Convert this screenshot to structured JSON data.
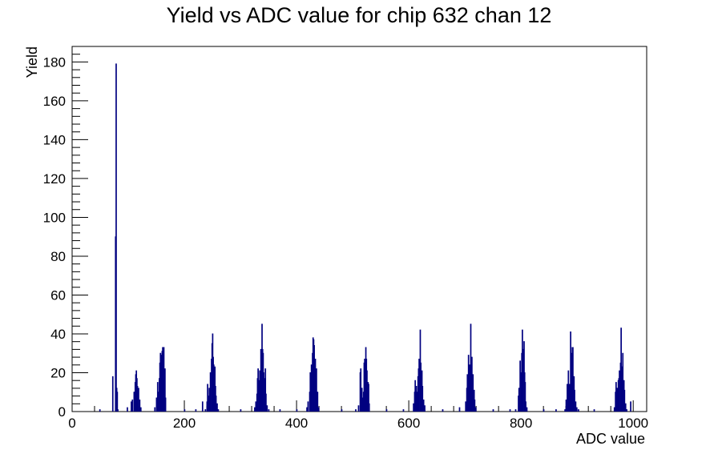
{
  "chart_data": {
    "type": "bar",
    "title": "Yield vs ADC value for chip 632 chan 12",
    "xlabel": "ADC value",
    "ylabel": "Yield",
    "xlim": [
      0,
      1024
    ],
    "ylim": [
      0,
      188
    ],
    "x_major_ticks": [
      0,
      200,
      400,
      600,
      800,
      1000
    ],
    "y_major_ticks": [
      0,
      20,
      40,
      60,
      80,
      100,
      120,
      140,
      160,
      180
    ],
    "line_color": "#000080",
    "series": [
      {
        "points": [
          [
            49,
            1
          ],
          [
            72,
            18
          ],
          [
            77,
            90
          ],
          [
            78,
            179
          ],
          [
            79,
            12
          ],
          [
            80,
            10
          ],
          [
            81,
            1
          ],
          [
            98,
            2
          ],
          [
            105,
            5
          ],
          [
            107,
            6
          ],
          [
            110,
            10
          ],
          [
            112,
            15
          ],
          [
            113,
            19
          ],
          [
            114,
            21
          ],
          [
            115,
            17
          ],
          [
            116,
            13
          ],
          [
            118,
            12
          ],
          [
            120,
            6
          ],
          [
            122,
            2
          ],
          [
            147,
            2
          ],
          [
            150,
            7
          ],
          [
            152,
            15
          ],
          [
            153,
            10
          ],
          [
            155,
            17
          ],
          [
            156,
            25
          ],
          [
            157,
            30
          ],
          [
            159,
            29
          ],
          [
            160,
            31
          ],
          [
            161,
            33
          ],
          [
            162,
            16
          ],
          [
            163,
            33
          ],
          [
            165,
            22
          ],
          [
            166,
            7
          ],
          [
            200,
            1
          ],
          [
            220,
            1
          ],
          [
            232,
            5
          ],
          [
            237,
            1
          ],
          [
            240,
            5
          ],
          [
            241,
            14
          ],
          [
            243,
            8
          ],
          [
            244,
            12
          ],
          [
            246,
            20
          ],
          [
            248,
            27
          ],
          [
            249,
            35
          ],
          [
            250,
            40
          ],
          [
            251,
            28
          ],
          [
            252,
            24
          ],
          [
            254,
            23
          ],
          [
            255,
            13
          ],
          [
            256,
            8
          ],
          [
            258,
            4
          ],
          [
            260,
            1
          ],
          [
            300,
            1
          ],
          [
            325,
            2
          ],
          [
            327,
            5
          ],
          [
            329,
            9
          ],
          [
            330,
            17
          ],
          [
            331,
            22
          ],
          [
            333,
            16
          ],
          [
            334,
            21
          ],
          [
            336,
            32
          ],
          [
            337,
            28
          ],
          [
            338,
            45
          ],
          [
            339,
            32
          ],
          [
            340,
            30
          ],
          [
            341,
            20
          ],
          [
            343,
            17
          ],
          [
            344,
            22
          ],
          [
            345,
            9
          ],
          [
            347,
            3
          ],
          [
            350,
            1
          ],
          [
            370,
            1
          ],
          [
            400,
            1
          ],
          [
            418,
            2
          ],
          [
            420,
            5
          ],
          [
            423,
            10
          ],
          [
            424,
            20
          ],
          [
            426,
            24
          ],
          [
            428,
            30
          ],
          [
            429,
            38
          ],
          [
            430,
            37
          ],
          [
            431,
            34
          ],
          [
            433,
            27
          ],
          [
            434,
            17
          ],
          [
            435,
            22
          ],
          [
            437,
            10
          ],
          [
            439,
            2
          ],
          [
            480,
            1
          ],
          [
            505,
            1
          ],
          [
            510,
            3
          ],
          [
            513,
            20
          ],
          [
            514,
            22
          ],
          [
            516,
            12
          ],
          [
            518,
            7
          ],
          [
            519,
            10
          ],
          [
            520,
            25
          ],
          [
            521,
            27
          ],
          [
            523,
            33
          ],
          [
            524,
            27
          ],
          [
            525,
            21
          ],
          [
            527,
            15
          ],
          [
            528,
            14
          ],
          [
            529,
            4
          ],
          [
            560,
            1
          ],
          [
            590,
            1
          ],
          [
            608,
            4
          ],
          [
            610,
            10
          ],
          [
            611,
            16
          ],
          [
            613,
            13
          ],
          [
            614,
            10
          ],
          [
            616,
            18
          ],
          [
            617,
            22
          ],
          [
            618,
            27
          ],
          [
            620,
            42
          ],
          [
            621,
            25
          ],
          [
            623,
            21
          ],
          [
            624,
            13
          ],
          [
            626,
            6
          ],
          [
            628,
            3
          ],
          [
            660,
            1
          ],
          [
            690,
            2
          ],
          [
            701,
            5
          ],
          [
            703,
            12
          ],
          [
            704,
            19
          ],
          [
            706,
            29
          ],
          [
            707,
            20
          ],
          [
            708,
            24
          ],
          [
            709,
            16
          ],
          [
            710,
            45
          ],
          [
            711,
            23
          ],
          [
            712,
            28
          ],
          [
            714,
            19
          ],
          [
            716,
            11
          ],
          [
            717,
            6
          ],
          [
            719,
            2
          ],
          [
            750,
            1
          ],
          [
            780,
            1
          ],
          [
            790,
            1
          ],
          [
            795,
            8
          ],
          [
            796,
            12
          ],
          [
            798,
            26
          ],
          [
            800,
            20
          ],
          [
            801,
            30
          ],
          [
            802,
            42
          ],
          [
            803,
            32
          ],
          [
            805,
            36
          ],
          [
            806,
            20
          ],
          [
            807,
            15
          ],
          [
            808,
            5
          ],
          [
            810,
            2
          ],
          [
            840,
            1
          ],
          [
            862,
            1
          ],
          [
            878,
            1
          ],
          [
            880,
            6
          ],
          [
            882,
            14
          ],
          [
            884,
            21
          ],
          [
            886,
            14
          ],
          [
            888,
            41
          ],
          [
            889,
            30
          ],
          [
            890,
            22
          ],
          [
            891,
            33
          ],
          [
            892,
            33
          ],
          [
            894,
            18
          ],
          [
            895,
            11
          ],
          [
            897,
            5
          ],
          [
            899,
            2
          ],
          [
            902,
            1
          ],
          [
            930,
            1
          ],
          [
            966,
            2
          ],
          [
            968,
            10
          ],
          [
            969,
            15
          ],
          [
            971,
            12
          ],
          [
            973,
            16
          ],
          [
            974,
            17
          ],
          [
            975,
            21
          ],
          [
            977,
            25
          ],
          [
            978,
            43
          ],
          [
            979,
            21
          ],
          [
            980,
            23
          ],
          [
            981,
            30
          ],
          [
            983,
            16
          ],
          [
            984,
            11
          ],
          [
            986,
            4
          ],
          [
            988,
            1
          ],
          [
            995,
            5
          ]
        ]
      }
    ]
  }
}
